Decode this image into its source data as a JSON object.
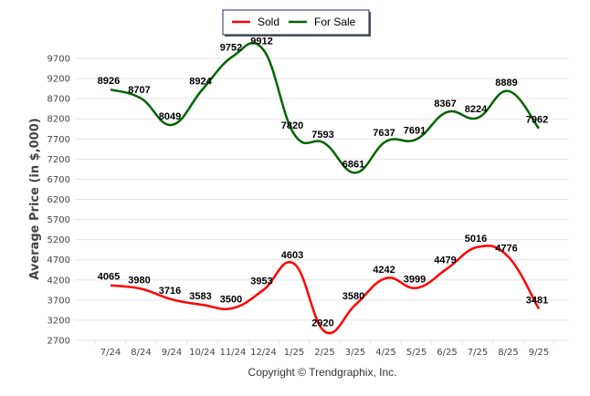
{
  "chart_data": {
    "type": "line",
    "title": "",
    "xlabel": "",
    "ylabel": "Average Price (in $,000)",
    "categories": [
      "7/24",
      "8/24",
      "9/24",
      "10/24",
      "11/24",
      "12/24",
      "1/25",
      "2/25",
      "3/25",
      "4/25",
      "5/25",
      "6/25",
      "7/25",
      "8/25",
      "9/25"
    ],
    "yticks": [
      2700,
      3200,
      3700,
      4200,
      4700,
      5200,
      5700,
      6200,
      6700,
      7200,
      7700,
      8200,
      8700,
      9200,
      9700
    ],
    "ylim": [
      2700,
      9700
    ],
    "grid": true,
    "legend_position": "top-center",
    "series": [
      {
        "name": "Sold",
        "color": "#ff0000",
        "values": [
          4065,
          3980,
          3716,
          3583,
          3500,
          3953,
          4603,
          2920,
          3580,
          4242,
          3999,
          4479,
          5016,
          4776,
          3481
        ]
      },
      {
        "name": "For Sale",
        "color": "#006400",
        "values": [
          8926,
          8707,
          8049,
          8924,
          9752,
          9912,
          7820,
          7593,
          6861,
          7637,
          7691,
          8367,
          8224,
          8889,
          7962
        ]
      }
    ],
    "credit": "Copyright © Trendgraphix, Inc."
  }
}
